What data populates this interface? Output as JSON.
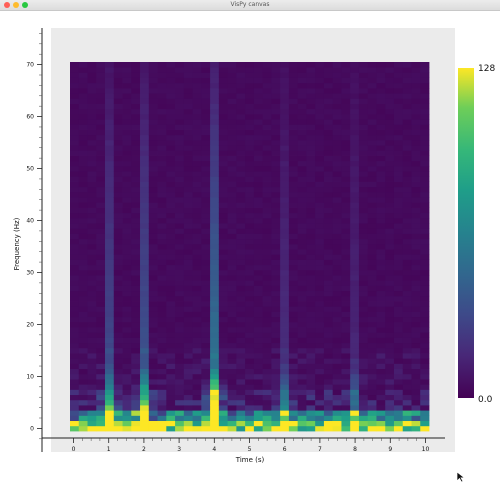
{
  "window": {
    "title": "VisPy canvas"
  },
  "chart_data": {
    "type": "heatmap",
    "xlabel": "Time (s)",
    "ylabel": "Frequency (Hz)",
    "xlim": [
      -0.1,
      10.1
    ],
    "ylim": [
      -0.5,
      70.5
    ],
    "x_ticks": [
      "0",
      "1",
      "2",
      "3",
      "4",
      "5",
      "6",
      "7",
      "8",
      "9",
      "10"
    ],
    "y_ticks": [
      "0",
      "10",
      "20",
      "30",
      "40",
      "50",
      "60",
      "70"
    ],
    "colorbar": {
      "max_label": "128",
      "min_label": "0.0",
      "colormap": "viridis",
      "range": [
        0,
        128
      ]
    },
    "n_time_bins": 41,
    "n_freq_bins": 71,
    "ridges": [
      {
        "time": 1.0,
        "level": 34,
        "low_freq_peak": 90
      },
      {
        "time": 2.0,
        "level": 40,
        "low_freq_peak": 100
      },
      {
        "time": 4.0,
        "level": 60,
        "low_freq_peak": 128
      },
      {
        "time": 6.0,
        "level": 18,
        "low_freq_peak": 70
      },
      {
        "time": 8.0,
        "level": 14,
        "low_freq_peak": 40
      }
    ],
    "background_level": 2
  },
  "colors": {
    "viridis_low": "#440154",
    "viridis_high": "#fde725",
    "panel_bg": "#ebebeb"
  }
}
